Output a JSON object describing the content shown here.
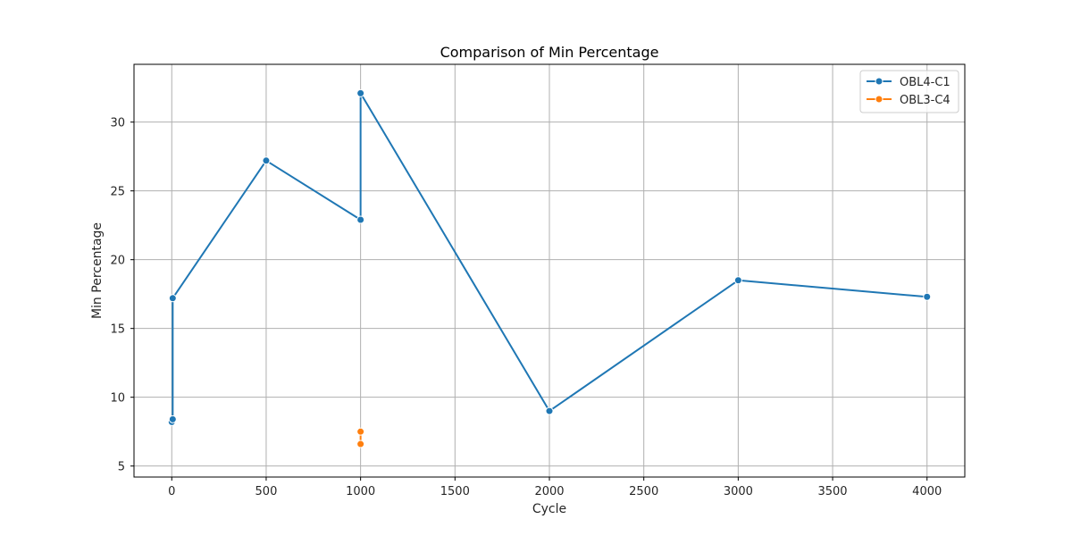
{
  "chart_data": {
    "type": "line",
    "title": "Comparison of Min Percentage",
    "xlabel": "Cycle",
    "ylabel": "Min Percentage",
    "xlim": [
      -200,
      4200
    ],
    "ylim": [
      4.2,
      34.2
    ],
    "xticks": [
      0,
      500,
      1000,
      1500,
      2000,
      2500,
      3000,
      3500,
      4000
    ],
    "yticks": [
      5,
      10,
      15,
      20,
      25,
      30
    ],
    "grid": true,
    "legend_position": "top-right",
    "series": [
      {
        "name": "OBL4-C1",
        "color": "#1f77b4",
        "points": [
          [
            0,
            8.2
          ],
          [
            5,
            8.4
          ],
          [
            5,
            17.2
          ],
          [
            500,
            27.2
          ],
          [
            1000,
            22.9
          ],
          [
            1000,
            32.1
          ],
          [
            2000,
            9.0
          ],
          [
            3000,
            18.5
          ],
          [
            4000,
            17.3
          ]
        ]
      },
      {
        "name": "OBL3-C4",
        "color": "#ff7f0e",
        "points": [
          [
            1000,
            6.6
          ],
          [
            1000,
            7.5
          ]
        ]
      }
    ]
  }
}
